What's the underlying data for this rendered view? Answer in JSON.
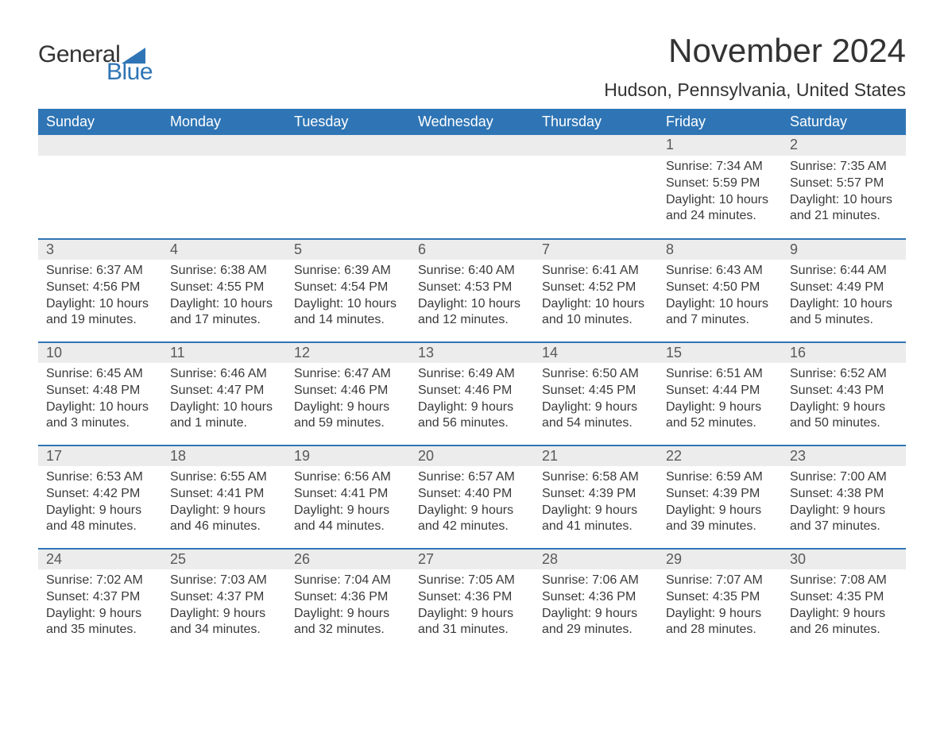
{
  "logo": {
    "word1": "General",
    "word2": "Blue",
    "flag_color": "#2f75b5"
  },
  "title": "November 2024",
  "location": "Hudson, Pennsylvania, United States",
  "colors": {
    "header_bg": "#2f75b5",
    "header_text": "#ffffff",
    "day_border": "#2f75b5",
    "day_num_bg": "#ececec",
    "day_num_text": "#595959",
    "body_text": "#3a3a3a"
  },
  "weekdays": [
    "Sunday",
    "Monday",
    "Tuesday",
    "Wednesday",
    "Thursday",
    "Friday",
    "Saturday"
  ],
  "weeks": [
    [
      null,
      null,
      null,
      null,
      null,
      {
        "n": "1",
        "sunrise": "Sunrise: 7:34 AM",
        "sunset": "Sunset: 5:59 PM",
        "daylight": "Daylight: 10 hours and 24 minutes."
      },
      {
        "n": "2",
        "sunrise": "Sunrise: 7:35 AM",
        "sunset": "Sunset: 5:57 PM",
        "daylight": "Daylight: 10 hours and 21 minutes."
      }
    ],
    [
      {
        "n": "3",
        "sunrise": "Sunrise: 6:37 AM",
        "sunset": "Sunset: 4:56 PM",
        "daylight": "Daylight: 10 hours and 19 minutes."
      },
      {
        "n": "4",
        "sunrise": "Sunrise: 6:38 AM",
        "sunset": "Sunset: 4:55 PM",
        "daylight": "Daylight: 10 hours and 17 minutes."
      },
      {
        "n": "5",
        "sunrise": "Sunrise: 6:39 AM",
        "sunset": "Sunset: 4:54 PM",
        "daylight": "Daylight: 10 hours and 14 minutes."
      },
      {
        "n": "6",
        "sunrise": "Sunrise: 6:40 AM",
        "sunset": "Sunset: 4:53 PM",
        "daylight": "Daylight: 10 hours and 12 minutes."
      },
      {
        "n": "7",
        "sunrise": "Sunrise: 6:41 AM",
        "sunset": "Sunset: 4:52 PM",
        "daylight": "Daylight: 10 hours and 10 minutes."
      },
      {
        "n": "8",
        "sunrise": "Sunrise: 6:43 AM",
        "sunset": "Sunset: 4:50 PM",
        "daylight": "Daylight: 10 hours and 7 minutes."
      },
      {
        "n": "9",
        "sunrise": "Sunrise: 6:44 AM",
        "sunset": "Sunset: 4:49 PM",
        "daylight": "Daylight: 10 hours and 5 minutes."
      }
    ],
    [
      {
        "n": "10",
        "sunrise": "Sunrise: 6:45 AM",
        "sunset": "Sunset: 4:48 PM",
        "daylight": "Daylight: 10 hours and 3 minutes."
      },
      {
        "n": "11",
        "sunrise": "Sunrise: 6:46 AM",
        "sunset": "Sunset: 4:47 PM",
        "daylight": "Daylight: 10 hours and 1 minute."
      },
      {
        "n": "12",
        "sunrise": "Sunrise: 6:47 AM",
        "sunset": "Sunset: 4:46 PM",
        "daylight": "Daylight: 9 hours and 59 minutes."
      },
      {
        "n": "13",
        "sunrise": "Sunrise: 6:49 AM",
        "sunset": "Sunset: 4:46 PM",
        "daylight": "Daylight: 9 hours and 56 minutes."
      },
      {
        "n": "14",
        "sunrise": "Sunrise: 6:50 AM",
        "sunset": "Sunset: 4:45 PM",
        "daylight": "Daylight: 9 hours and 54 minutes."
      },
      {
        "n": "15",
        "sunrise": "Sunrise: 6:51 AM",
        "sunset": "Sunset: 4:44 PM",
        "daylight": "Daylight: 9 hours and 52 minutes."
      },
      {
        "n": "16",
        "sunrise": "Sunrise: 6:52 AM",
        "sunset": "Sunset: 4:43 PM",
        "daylight": "Daylight: 9 hours and 50 minutes."
      }
    ],
    [
      {
        "n": "17",
        "sunrise": "Sunrise: 6:53 AM",
        "sunset": "Sunset: 4:42 PM",
        "daylight": "Daylight: 9 hours and 48 minutes."
      },
      {
        "n": "18",
        "sunrise": "Sunrise: 6:55 AM",
        "sunset": "Sunset: 4:41 PM",
        "daylight": "Daylight: 9 hours and 46 minutes."
      },
      {
        "n": "19",
        "sunrise": "Sunrise: 6:56 AM",
        "sunset": "Sunset: 4:41 PM",
        "daylight": "Daylight: 9 hours and 44 minutes."
      },
      {
        "n": "20",
        "sunrise": "Sunrise: 6:57 AM",
        "sunset": "Sunset: 4:40 PM",
        "daylight": "Daylight: 9 hours and 42 minutes."
      },
      {
        "n": "21",
        "sunrise": "Sunrise: 6:58 AM",
        "sunset": "Sunset: 4:39 PM",
        "daylight": "Daylight: 9 hours and 41 minutes."
      },
      {
        "n": "22",
        "sunrise": "Sunrise: 6:59 AM",
        "sunset": "Sunset: 4:39 PM",
        "daylight": "Daylight: 9 hours and 39 minutes."
      },
      {
        "n": "23",
        "sunrise": "Sunrise: 7:00 AM",
        "sunset": "Sunset: 4:38 PM",
        "daylight": "Daylight: 9 hours and 37 minutes."
      }
    ],
    [
      {
        "n": "24",
        "sunrise": "Sunrise: 7:02 AM",
        "sunset": "Sunset: 4:37 PM",
        "daylight": "Daylight: 9 hours and 35 minutes."
      },
      {
        "n": "25",
        "sunrise": "Sunrise: 7:03 AM",
        "sunset": "Sunset: 4:37 PM",
        "daylight": "Daylight: 9 hours and 34 minutes."
      },
      {
        "n": "26",
        "sunrise": "Sunrise: 7:04 AM",
        "sunset": "Sunset: 4:36 PM",
        "daylight": "Daylight: 9 hours and 32 minutes."
      },
      {
        "n": "27",
        "sunrise": "Sunrise: 7:05 AM",
        "sunset": "Sunset: 4:36 PM",
        "daylight": "Daylight: 9 hours and 31 minutes."
      },
      {
        "n": "28",
        "sunrise": "Sunrise: 7:06 AM",
        "sunset": "Sunset: 4:36 PM",
        "daylight": "Daylight: 9 hours and 29 minutes."
      },
      {
        "n": "29",
        "sunrise": "Sunrise: 7:07 AM",
        "sunset": "Sunset: 4:35 PM",
        "daylight": "Daylight: 9 hours and 28 minutes."
      },
      {
        "n": "30",
        "sunrise": "Sunrise: 7:08 AM",
        "sunset": "Sunset: 4:35 PM",
        "daylight": "Daylight: 9 hours and 26 minutes."
      }
    ]
  ]
}
